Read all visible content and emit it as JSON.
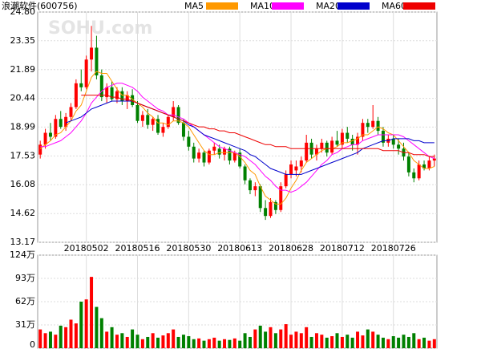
{
  "chart_data": [
    {
      "type": "candlestick",
      "title": "浪潮软件(600756)",
      "watermark": "SOHU.com",
      "up_color": "#ff0000",
      "down_color": "#008000",
      "grid": true,
      "categories": [
        null,
        null,
        null,
        null,
        null,
        null,
        null,
        null,
        null,
        "20180502",
        null,
        null,
        null,
        null,
        null,
        null,
        null,
        null,
        null,
        "20180516",
        null,
        null,
        null,
        null,
        null,
        null,
        null,
        null,
        null,
        "20180530",
        null,
        null,
        null,
        null,
        null,
        null,
        null,
        null,
        null,
        "20180613",
        null,
        null,
        null,
        null,
        null,
        null,
        null,
        null,
        null,
        "20180628",
        null,
        null,
        null,
        null,
        null,
        null,
        null,
        null,
        null,
        "20180712",
        null,
        null,
        null,
        null,
        null,
        null,
        null,
        null,
        null,
        "20180726",
        null,
        null,
        null,
        null,
        null,
        null,
        null,
        null
      ],
      "open": [
        17.6,
        18.1,
        18.7,
        18.5,
        19.4,
        19.0,
        19.5,
        20.0,
        21.2,
        21.0,
        22.4,
        23.0,
        21.6,
        20.5,
        21.0,
        20.4,
        20.8,
        20.3,
        20.6,
        20.1,
        19.3,
        19.6,
        19.1,
        19.4,
        18.7,
        19.0,
        19.5,
        20.0,
        19.2,
        18.5,
        18.0,
        17.4,
        17.7,
        17.2,
        17.8,
        17.9,
        17.6,
        17.9,
        17.3,
        17.7,
        17.0,
        16.3,
        15.8,
        16.0,
        14.9,
        14.5,
        15.2,
        14.8,
        16.0,
        16.6,
        16.8,
        17.0,
        17.3,
        18.2,
        17.6,
        17.9,
        18.2,
        17.7,
        18.3,
        18.1,
        18.7,
        18.4,
        18.1,
        18.5,
        19.2,
        19.0,
        19.3,
        18.8,
        18.2,
        18.4,
        18.1,
        17.9,
        17.5,
        16.7,
        16.4,
        17.1,
        16.9,
        17.3
      ],
      "high": [
        18.3,
        18.9,
        19.2,
        19.6,
        19.8,
        19.7,
        20.2,
        21.4,
        21.9,
        22.6,
        24.1,
        23.6,
        21.9,
        21.2,
        21.3,
        21.0,
        21.0,
        20.8,
        20.9,
        20.3,
        19.8,
        19.9,
        19.5,
        19.6,
        19.2,
        19.6,
        20.3,
        20.1,
        19.4,
        18.8,
        18.2,
        17.9,
        17.8,
        17.9,
        18.2,
        18.1,
        18.0,
        18.0,
        17.8,
        17.9,
        17.1,
        16.4,
        16.2,
        16.1,
        15.3,
        15.4,
        15.3,
        16.2,
        16.8,
        17.3,
        17.3,
        17.5,
        18.6,
        18.4,
        18.1,
        18.4,
        18.3,
        18.5,
        18.8,
        18.9,
        19.0,
        18.6,
        18.7,
        19.4,
        19.4,
        20.1,
        19.5,
        19.0,
        18.6,
        18.6,
        18.4,
        18.2,
        17.7,
        16.9,
        17.3,
        17.3,
        17.5,
        17.6
      ],
      "low": [
        17.4,
        17.9,
        18.3,
        18.4,
        18.9,
        18.8,
        19.3,
        19.9,
        20.8,
        20.9,
        21.8,
        21.4,
        20.3,
        20.2,
        20.3,
        20.2,
        20.1,
        19.9,
        20.0,
        19.2,
        19.0,
        18.9,
        18.8,
        18.6,
        18.5,
        18.9,
        19.3,
        19.1,
        18.3,
        17.8,
        17.2,
        17.2,
        17.0,
        17.1,
        17.6,
        17.4,
        17.3,
        17.1,
        17.2,
        16.9,
        16.1,
        15.6,
        15.5,
        14.7,
        14.3,
        14.4,
        14.6,
        14.7,
        15.9,
        16.4,
        16.5,
        16.7,
        17.2,
        17.4,
        17.3,
        17.7,
        17.5,
        17.6,
        18.0,
        17.9,
        18.2,
        17.8,
        17.6,
        18.3,
        18.7,
        18.9,
        18.6,
        18.0,
        18.0,
        17.9,
        17.6,
        17.3,
        16.5,
        16.2,
        16.3,
        16.8,
        16.8,
        17.0
      ],
      "close": [
        18.1,
        18.7,
        18.5,
        19.4,
        19.0,
        19.5,
        20.0,
        21.2,
        21.0,
        22.4,
        23.0,
        21.6,
        20.5,
        21.0,
        20.4,
        20.8,
        20.3,
        20.6,
        20.1,
        19.3,
        19.6,
        19.1,
        19.4,
        18.7,
        19.0,
        19.5,
        20.0,
        19.2,
        18.5,
        18.0,
        17.4,
        17.7,
        17.2,
        17.8,
        18.0,
        17.6,
        17.9,
        17.3,
        17.7,
        17.0,
        16.3,
        15.8,
        16.0,
        14.9,
        14.5,
        15.2,
        14.8,
        16.0,
        16.6,
        17.1,
        17.0,
        17.3,
        18.2,
        17.6,
        17.9,
        18.2,
        17.7,
        18.3,
        18.1,
        18.7,
        18.4,
        18.1,
        18.5,
        19.2,
        19.0,
        19.3,
        18.8,
        18.2,
        18.4,
        18.1,
        17.9,
        17.5,
        16.7,
        16.4,
        17.1,
        16.9,
        17.3,
        17.4
      ],
      "ma": [
        {
          "name": "MA5",
          "color": "#ff9900",
          "values": [
            17.9,
            18.1,
            18.3,
            18.6,
            18.7,
            19.0,
            19.3,
            19.8,
            20.1,
            20.8,
            21.5,
            21.8,
            21.7,
            21.7,
            21.3,
            20.9,
            20.6,
            20.6,
            20.4,
            20.2,
            20.0,
            19.7,
            19.5,
            19.2,
            19.2,
            19.1,
            19.3,
            19.3,
            19.2,
            19.0,
            18.6,
            18.2,
            17.8,
            17.6,
            17.6,
            17.7,
            17.7,
            17.7,
            17.7,
            17.5,
            17.2,
            16.8,
            16.6,
            16.0,
            15.5,
            15.3,
            15.1,
            15.1,
            15.4,
            15.9,
            16.3,
            16.8,
            17.2,
            17.4,
            17.6,
            17.8,
            17.9,
            17.9,
            18.0,
            18.2,
            18.2,
            18.3,
            18.4,
            18.6,
            18.6,
            18.8,
            19.0,
            18.9,
            18.7,
            18.6,
            18.3,
            18.0,
            17.7,
            17.3,
            17.1,
            16.9,
            16.9,
            17.0
          ]
        },
        {
          "name": "MA10",
          "color": "#ff00ff",
          "values": [
            18.0,
            18.0,
            18.1,
            18.2,
            18.3,
            18.5,
            18.7,
            19.0,
            19.3,
            19.7,
            20.2,
            20.5,
            20.8,
            21.0,
            21.1,
            21.2,
            21.2,
            21.1,
            21.0,
            20.8,
            20.5,
            20.3,
            20.1,
            19.9,
            19.8,
            19.6,
            19.6,
            19.5,
            19.4,
            19.2,
            19.0,
            18.8,
            18.6,
            18.4,
            18.2,
            18.0,
            17.9,
            17.8,
            17.7,
            17.6,
            17.5,
            17.3,
            17.1,
            16.8,
            16.5,
            16.3,
            16.0,
            15.8,
            15.8,
            15.7,
            15.8,
            16.0,
            16.2,
            16.5,
            16.8,
            17.1,
            17.3,
            17.6,
            17.7,
            17.9,
            18.0,
            18.1,
            18.1,
            18.3,
            18.4,
            18.5,
            18.6,
            18.6,
            18.6,
            18.6,
            18.6,
            18.5,
            18.3,
            18.1,
            17.9,
            17.7,
            17.5,
            17.4
          ]
        },
        {
          "name": "MA20",
          "color": "#0000cc",
          "values": [
            null,
            null,
            null,
            null,
            null,
            19.2,
            19.3,
            19.4,
            19.5,
            19.7,
            19.9,
            20.0,
            20.1,
            20.2,
            20.3,
            20.3,
            20.3,
            20.3,
            20.3,
            20.2,
            20.1,
            20.0,
            19.9,
            19.8,
            19.7,
            19.6,
            19.5,
            19.4,
            19.3,
            19.1,
            19.0,
            18.8,
            18.6,
            18.5,
            18.4,
            18.3,
            18.2,
            18.1,
            18.0,
            17.9,
            17.8,
            17.6,
            17.5,
            17.3,
            17.1,
            16.9,
            16.8,
            16.7,
            16.6,
            16.6,
            16.6,
            16.6,
            16.7,
            16.8,
            16.9,
            17.0,
            17.1,
            17.2,
            17.3,
            17.4,
            17.5,
            17.6,
            17.7,
            17.9,
            18.0,
            18.1,
            18.2,
            18.3,
            18.3,
            18.4,
            18.4,
            18.4,
            18.4,
            18.3,
            18.3,
            18.2,
            18.2,
            18.2
          ]
        },
        {
          "name": "MA60",
          "color": "#ee0000",
          "values": [
            null,
            null,
            null,
            null,
            null,
            null,
            null,
            null,
            20.6,
            20.6,
            20.6,
            20.6,
            20.6,
            20.6,
            20.5,
            20.5,
            20.4,
            20.4,
            20.3,
            20.2,
            20.1,
            20.0,
            19.9,
            19.8,
            19.7,
            19.6,
            19.5,
            19.4,
            19.3,
            19.2,
            19.1,
            19.0,
            19.0,
            18.9,
            18.9,
            18.8,
            18.8,
            18.7,
            18.7,
            18.6,
            18.5,
            18.4,
            18.3,
            18.2,
            18.1,
            18.1,
            18.0,
            18.0,
            18.0,
            17.9,
            17.9,
            17.9,
            17.9,
            17.9,
            17.9,
            17.9,
            17.9,
            17.9,
            17.9,
            17.9,
            17.9,
            17.9,
            17.9,
            17.9,
            17.9,
            17.9,
            17.9,
            17.8,
            17.8,
            17.8,
            17.8,
            17.7,
            17.7,
            17.6,
            17.6,
            17.6,
            17.5,
            17.5
          ]
        }
      ],
      "ylim": [
        13.17,
        24.8
      ],
      "yticks": [
        {
          "value": 24.8,
          "label": "24.80"
        },
        23.35,
        21.89,
        20.44,
        18.99,
        17.53,
        16.08,
        14.62,
        13.17
      ]
    },
    {
      "type": "bar",
      "values": [
        25,
        20,
        22,
        18,
        30,
        28,
        38,
        33,
        62,
        65,
        95,
        55,
        40,
        22,
        28,
        18,
        20,
        15,
        25,
        18,
        12,
        15,
        20,
        14,
        17,
        20,
        25,
        15,
        18,
        16,
        12,
        13,
        10,
        12,
        14,
        10,
        12,
        11,
        13,
        10,
        20,
        15,
        25,
        30,
        22,
        28,
        20,
        25,
        32,
        18,
        22,
        20,
        28,
        15,
        20,
        18,
        14,
        16,
        20,
        15,
        18,
        14,
        22,
        17,
        25,
        22,
        18,
        14,
        12,
        16,
        14,
        18,
        15,
        20,
        12,
        14,
        10,
        12
      ],
      "ylim": [
        0,
        124
      ],
      "yticks": [
        {
          "value": 124,
          "label": "124万"
        },
        {
          "value": 93,
          "label": "93万"
        },
        {
          "value": 62,
          "label": "62万"
        },
        {
          "value": 31,
          "label": "31万"
        },
        0
      ]
    }
  ]
}
